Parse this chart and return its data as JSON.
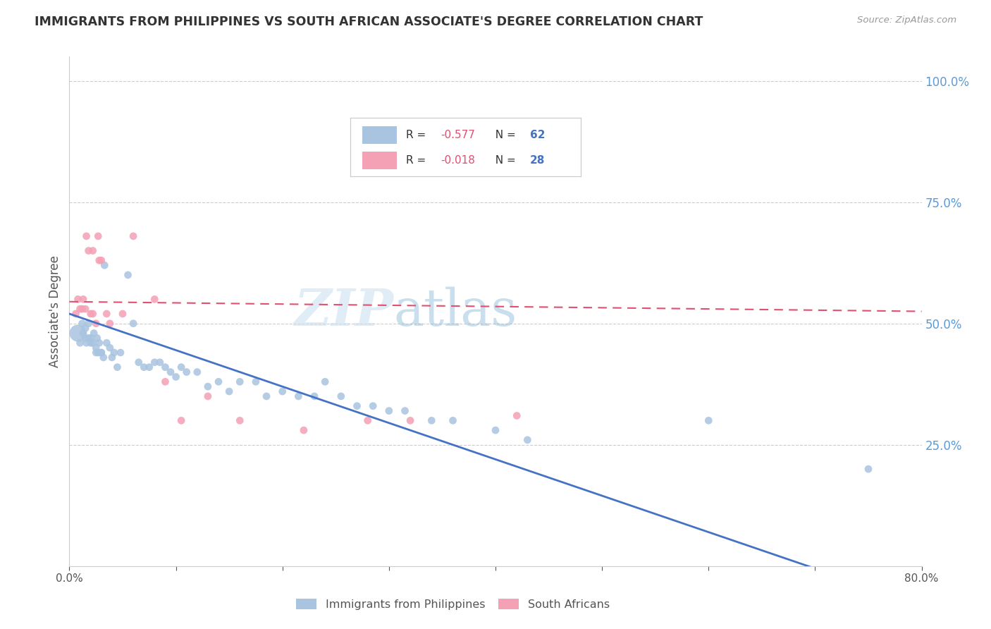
{
  "title": "IMMIGRANTS FROM PHILIPPINES VS SOUTH AFRICAN ASSOCIATE'S DEGREE CORRELATION CHART",
  "source": "Source: ZipAtlas.com",
  "ylabel": "Associate's Degree",
  "x_min": 0.0,
  "x_max": 0.8,
  "y_min": 0.0,
  "y_max": 1.05,
  "x_ticks": [
    0.0,
    0.1,
    0.2,
    0.3,
    0.4,
    0.5,
    0.6,
    0.7,
    0.8
  ],
  "x_tick_labels": [
    "0.0%",
    "",
    "",
    "",
    "",
    "",
    "",
    "",
    "80.0%"
  ],
  "y_ticks_right": [
    0.25,
    0.5,
    0.75,
    1.0
  ],
  "y_tick_labels_right": [
    "25.0%",
    "50.0%",
    "75.0%",
    "100.0%"
  ],
  "blue_color": "#a8c4e0",
  "pink_color": "#f4a0b5",
  "blue_line_color": "#4472c4",
  "pink_line_color": "#e05070",
  "grid_color": "#cccccc",
  "watermark_zip": "ZIP",
  "watermark_atlas": "atlas",
  "blue_x": [
    0.008,
    0.01,
    0.012,
    0.013,
    0.015,
    0.015,
    0.016,
    0.018,
    0.018,
    0.02,
    0.02,
    0.022,
    0.023,
    0.025,
    0.025,
    0.026,
    0.027,
    0.028,
    0.03,
    0.03,
    0.032,
    0.033,
    0.035,
    0.038,
    0.04,
    0.042,
    0.045,
    0.048,
    0.055,
    0.06,
    0.065,
    0.07,
    0.075,
    0.08,
    0.085,
    0.09,
    0.095,
    0.1,
    0.105,
    0.11,
    0.12,
    0.13,
    0.14,
    0.15,
    0.16,
    0.175,
    0.185,
    0.2,
    0.215,
    0.23,
    0.24,
    0.255,
    0.27,
    0.285,
    0.3,
    0.315,
    0.34,
    0.36,
    0.4,
    0.43,
    0.6,
    0.75
  ],
  "blue_y": [
    0.48,
    0.46,
    0.5,
    0.48,
    0.47,
    0.49,
    0.46,
    0.47,
    0.5,
    0.47,
    0.46,
    0.46,
    0.48,
    0.44,
    0.45,
    0.47,
    0.44,
    0.46,
    0.44,
    0.44,
    0.43,
    0.62,
    0.46,
    0.45,
    0.43,
    0.44,
    0.41,
    0.44,
    0.6,
    0.5,
    0.42,
    0.41,
    0.41,
    0.42,
    0.42,
    0.41,
    0.4,
    0.39,
    0.41,
    0.4,
    0.4,
    0.37,
    0.38,
    0.36,
    0.38,
    0.38,
    0.35,
    0.36,
    0.35,
    0.35,
    0.38,
    0.35,
    0.33,
    0.33,
    0.32,
    0.32,
    0.3,
    0.3,
    0.28,
    0.26,
    0.3,
    0.2
  ],
  "blue_sizes": [
    300,
    60,
    60,
    60,
    60,
    60,
    60,
    60,
    60,
    60,
    60,
    60,
    60,
    60,
    60,
    60,
    60,
    60,
    60,
    60,
    60,
    60,
    60,
    60,
    60,
    60,
    60,
    60,
    60,
    60,
    60,
    60,
    60,
    60,
    60,
    60,
    60,
    60,
    60,
    60,
    60,
    60,
    60,
    60,
    60,
    60,
    60,
    60,
    60,
    60,
    60,
    60,
    60,
    60,
    60,
    60,
    60,
    60,
    60,
    60,
    60,
    60
  ],
  "pink_x": [
    0.006,
    0.008,
    0.01,
    0.012,
    0.013,
    0.015,
    0.016,
    0.018,
    0.02,
    0.022,
    0.022,
    0.025,
    0.027,
    0.028,
    0.03,
    0.035,
    0.038,
    0.05,
    0.06,
    0.08,
    0.09,
    0.105,
    0.13,
    0.16,
    0.22,
    0.28,
    0.32,
    0.42
  ],
  "pink_y": [
    0.52,
    0.55,
    0.53,
    0.53,
    0.55,
    0.53,
    0.68,
    0.65,
    0.52,
    0.65,
    0.52,
    0.5,
    0.68,
    0.63,
    0.63,
    0.52,
    0.5,
    0.52,
    0.68,
    0.55,
    0.38,
    0.3,
    0.35,
    0.3,
    0.28,
    0.3,
    0.3,
    0.31
  ],
  "pink_sizes": [
    60,
    60,
    60,
    60,
    60,
    60,
    60,
    60,
    60,
    60,
    60,
    60,
    60,
    60,
    60,
    60,
    60,
    60,
    60,
    60,
    60,
    60,
    60,
    60,
    60,
    60,
    60,
    60
  ],
  "blue_trend": [
    0.0,
    0.52,
    0.8,
    -0.08
  ],
  "pink_trend": [
    0.0,
    0.545,
    0.8,
    0.525
  ],
  "legend_R_val_blue": "-0.577",
  "legend_N_val_blue": "62",
  "legend_R_val_pink": "-0.018",
  "legend_N_val_pink": "28"
}
